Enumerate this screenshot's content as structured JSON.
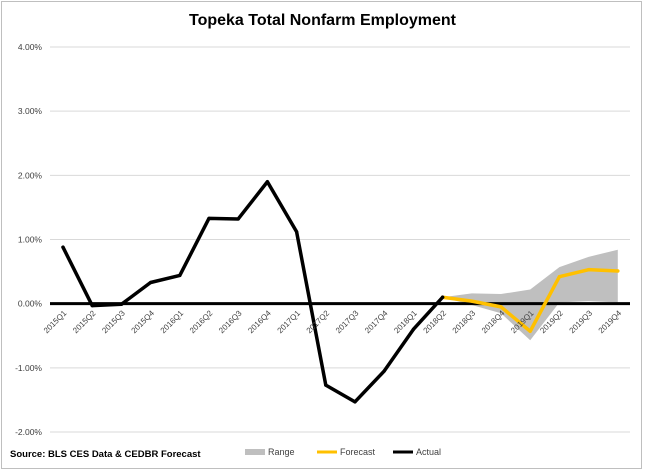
{
  "chart_data": {
    "type": "line",
    "title": "Topeka Total Nonfarm Employment",
    "xlabel": "",
    "ylabel": "",
    "source": "Source: BLS CES Data & CEDBR Forecast",
    "categories": [
      "2015Q1",
      "2015Q2",
      "2015Q3",
      "2015Q4",
      "2016Q1",
      "2016Q2",
      "2016Q3",
      "2016Q4",
      "2017Q1",
      "2017Q2",
      "2017Q3",
      "2017Q4",
      "2018Q1",
      "2018Q2",
      "2018Q3",
      "2018Q4",
      "2019Q1",
      "2019Q2",
      "2019Q3",
      "2019Q4"
    ],
    "y_ticks": [
      "4.00%",
      "3.00%",
      "2.00%",
      "1.00%",
      "0.00%",
      "-1.00%",
      "-2.00%"
    ],
    "ylim": [
      -2.0,
      4.0
    ],
    "grid": true,
    "legend_position": "bottom",
    "series": [
      {
        "name": "Actual",
        "color": "#000000",
        "values": [
          0.88,
          -0.03,
          -0.01,
          0.33,
          0.44,
          1.33,
          1.32,
          1.9,
          1.12,
          -1.27,
          -1.53,
          -1.05,
          -0.4,
          0.1,
          null,
          null,
          null,
          null,
          null,
          null
        ]
      },
      {
        "name": "Forecast",
        "color": "#ffc000",
        "values": [
          null,
          null,
          null,
          null,
          null,
          null,
          null,
          null,
          null,
          null,
          null,
          null,
          null,
          0.1,
          0.04,
          -0.05,
          -0.43,
          0.42,
          0.53,
          0.51
        ]
      },
      {
        "name": "Range",
        "color": "#bfbfbf",
        "lower": [
          null,
          null,
          null,
          null,
          null,
          null,
          null,
          null,
          null,
          null,
          null,
          null,
          null,
          0.1,
          -0.02,
          -0.15,
          -0.57,
          0.02,
          0.04,
          0.02
        ],
        "upper": [
          null,
          null,
          null,
          null,
          null,
          null,
          null,
          null,
          null,
          null,
          null,
          null,
          null,
          0.1,
          0.16,
          0.15,
          0.22,
          0.57,
          0.73,
          0.84
        ]
      }
    ],
    "legend": [
      "Range",
      "Forecast",
      "Actual"
    ]
  }
}
